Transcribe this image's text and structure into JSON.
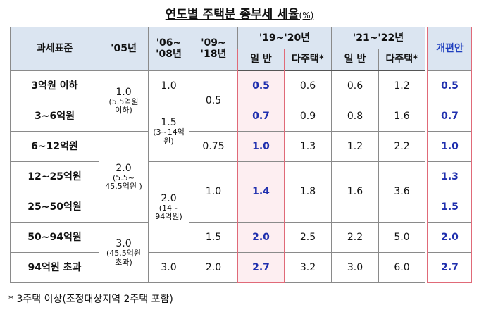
{
  "title": "연도별 주택분 종부세 세율",
  "unit": "(%)",
  "header": {
    "base": "과세표준",
    "y05": "'05년",
    "y06": "'06~\n'08년",
    "y09": "'09~\n'18년",
    "y19": "'19~'20년",
    "y21": "'21~'22년",
    "proposal": "개편안",
    "general": "일 반",
    "multi": "다주택*"
  },
  "table": {
    "rows": [
      [
        "3억원 이하",
        "1.0",
        "1.0",
        "0.5",
        "0.5",
        "0.6",
        "0.6",
        "1.2",
        "0.5"
      ],
      [
        "3~6억원",
        "1.5",
        "0.7",
        "0.9",
        "0.8",
        "1.6",
        "0.7"
      ],
      [
        "6~12억원",
        "2.0",
        "0.75",
        "1.0",
        "1.3",
        "1.2",
        "2.2",
        "1.0"
      ],
      [
        "12~25억원",
        "2.0",
        "1.0",
        "1.4",
        "1.8",
        "1.6",
        "3.6",
        "1.3"
      ],
      [
        "25~50억원",
        "1.5"
      ],
      [
        "50~94억원",
        "3.0",
        "1.5",
        "2.0",
        "2.5",
        "2.2",
        "5.0",
        "2.0"
      ],
      [
        "94억원 초과",
        "3.0",
        "2.0",
        "2.7",
        "3.2",
        "3.0",
        "6.0",
        "2.7"
      ]
    ],
    "cell_notes": [
      "(5.5억원\n이하)",
      "(3~14억원)",
      "(5.5~\n45.5억원 )",
      "(14~\n94억원)",
      "(45.5억원\n초과)"
    ]
  },
  "footnote": "* 3주택 이상(조정대상지역 2주택 포함)"
}
